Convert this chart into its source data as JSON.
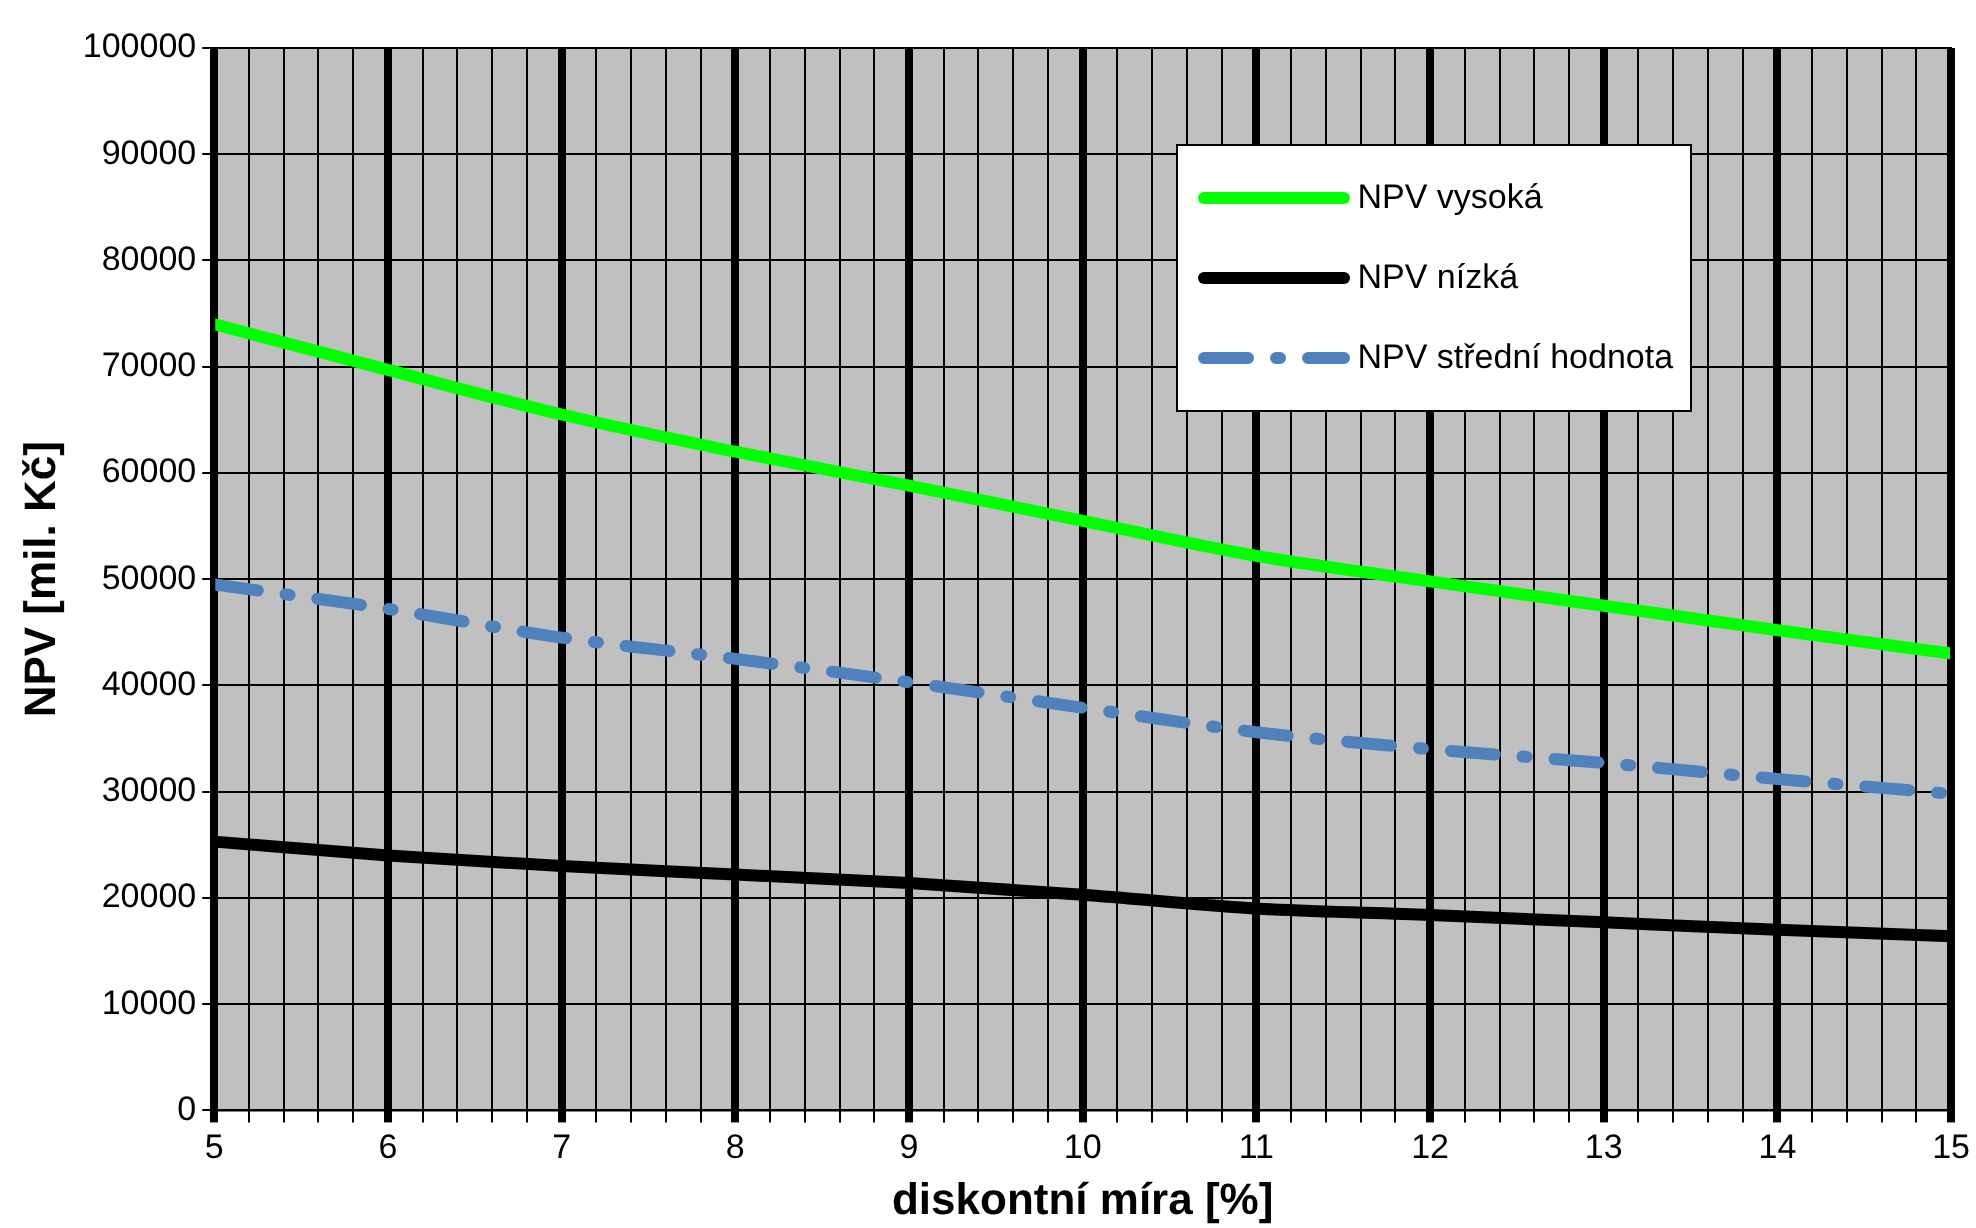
{
  "chart_data": {
    "type": "line",
    "xlabel": "diskontní míra [%]",
    "ylabel": "NPV [mil. Kč]",
    "x": [
      5,
      6,
      7,
      8,
      9,
      10,
      11,
      12,
      13,
      14,
      15
    ],
    "xlim": [
      5,
      15
    ],
    "xticks": [
      5,
      {
        "value": 5.2,
        "label": null
      },
      {
        "value": 5.4,
        "label": null
      },
      {
        "value": 5.6,
        "label": null
      },
      {
        "value": 5.8,
        "label": null
      },
      6,
      {
        "value": 6.2,
        "label": null
      },
      {
        "value": 6.4,
        "label": null
      },
      {
        "value": 6.6,
        "label": null
      },
      {
        "value": 6.8,
        "label": null
      },
      7,
      {
        "value": 7.2,
        "label": null
      },
      {
        "value": 7.4,
        "label": null
      },
      {
        "value": 7.6,
        "label": null
      },
      {
        "value": 7.8,
        "label": null
      },
      8,
      {
        "value": 8.2,
        "label": null
      },
      {
        "value": 8.4,
        "label": null
      },
      {
        "value": 8.6,
        "label": null
      },
      {
        "value": 8.8,
        "label": null
      },
      9,
      {
        "value": 9.2,
        "label": null
      },
      {
        "value": 9.4,
        "label": null
      },
      {
        "value": 9.6,
        "label": null
      },
      {
        "value": 9.8,
        "label": null
      },
      10,
      {
        "value": 10.2,
        "label": null
      },
      {
        "value": 10.4,
        "label": null
      },
      {
        "value": 10.6,
        "label": null
      },
      {
        "value": 10.8,
        "label": null
      },
      11,
      {
        "value": 11.2,
        "label": null
      },
      {
        "value": 11.4,
        "label": null
      },
      {
        "value": 11.6,
        "label": null
      },
      {
        "value": 11.8,
        "label": null
      },
      12,
      {
        "value": 12.2,
        "label": null
      },
      {
        "value": 12.4,
        "label": null
      },
      {
        "value": 12.6,
        "label": null
      },
      {
        "value": 12.8,
        "label": null
      },
      13,
      {
        "value": 13.2,
        "label": null
      },
      {
        "value": 13.4,
        "label": null
      },
      {
        "value": 13.6,
        "label": null
      },
      {
        "value": 13.8,
        "label": null
      },
      14,
      {
        "value": 14.2,
        "label": null
      },
      {
        "value": 14.4,
        "label": null
      },
      {
        "value": 14.6,
        "label": null
      },
      {
        "value": 14.8,
        "label": null
      },
      15
    ],
    "ylim": [
      0,
      100000
    ],
    "yticks": [
      0,
      10000,
      20000,
      30000,
      40000,
      50000,
      60000,
      70000,
      80000,
      90000,
      100000
    ],
    "grid": true,
    "legend": "top right",
    "marker": "none",
    "series": [
      {
        "name": "NPV vysoká",
        "color": "#00ff00",
        "line_style": "solid",
        "values": [
          74000,
          69700,
          65500,
          62000,
          58800,
          55500,
          52200,
          49800,
          47500,
          45200,
          43000
        ]
      },
      {
        "name": "NPV nízká",
        "color": "#000000",
        "line_style": "solid",
        "values": [
          25300,
          24000,
          23000,
          22200,
          21400,
          20300,
          19000,
          18400,
          17700,
          17000,
          16400
        ]
      },
      {
        "name": "NPV střední hodnota",
        "color": "#4f81bd",
        "line_style": "dashed",
        "values": [
          49500,
          47200,
          44500,
          42500,
          40300,
          37900,
          35600,
          34000,
          32700,
          31200,
          29800
        ]
      }
    ]
  }
}
